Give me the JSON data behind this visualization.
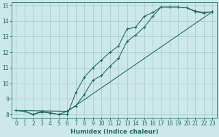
{
  "xlabel": "Humidex (Indice chaleur)",
  "bg_color": "#cce8e8",
  "grid_color": "#aacccc",
  "line_color": "#1a6b5a",
  "xlim": [
    -0.5,
    23.5
  ],
  "ylim": [
    7.8,
    15.2
  ],
  "xticks": [
    0,
    1,
    2,
    3,
    4,
    5,
    6,
    7,
    8,
    9,
    10,
    11,
    12,
    13,
    14,
    15,
    16,
    17,
    18,
    19,
    20,
    21,
    22,
    23
  ],
  "yticks": [
    8,
    9,
    10,
    11,
    12,
    13,
    14,
    15
  ],
  "line1_x": [
    0,
    1,
    2,
    3,
    4,
    5,
    6,
    7,
    8,
    9,
    10,
    11,
    12,
    13,
    14,
    15,
    16,
    17,
    18,
    19,
    20,
    21,
    22,
    23
  ],
  "line1_y": [
    8.25,
    8.2,
    8.0,
    8.2,
    8.1,
    8.0,
    8.0,
    9.4,
    10.4,
    11.0,
    11.5,
    12.0,
    12.4,
    13.5,
    13.6,
    14.3,
    14.55,
    14.9,
    14.9,
    14.9,
    14.85,
    14.65,
    14.55,
    14.6
  ],
  "line2_x": [
    0,
    1,
    2,
    3,
    4,
    5,
    6,
    7,
    8,
    9,
    10,
    11,
    12,
    13,
    14,
    15,
    16,
    17,
    18,
    19,
    20,
    21,
    22,
    23
  ],
  "line2_y": [
    8.25,
    8.2,
    8.0,
    8.15,
    8.1,
    8.0,
    8.2,
    8.55,
    9.3,
    10.2,
    10.5,
    11.1,
    11.6,
    12.7,
    13.1,
    13.6,
    14.3,
    14.9,
    14.9,
    14.9,
    14.85,
    14.6,
    14.5,
    14.6
  ],
  "line3_x": [
    0,
    6,
    23
  ],
  "line3_y": [
    8.25,
    8.2,
    14.6
  ]
}
